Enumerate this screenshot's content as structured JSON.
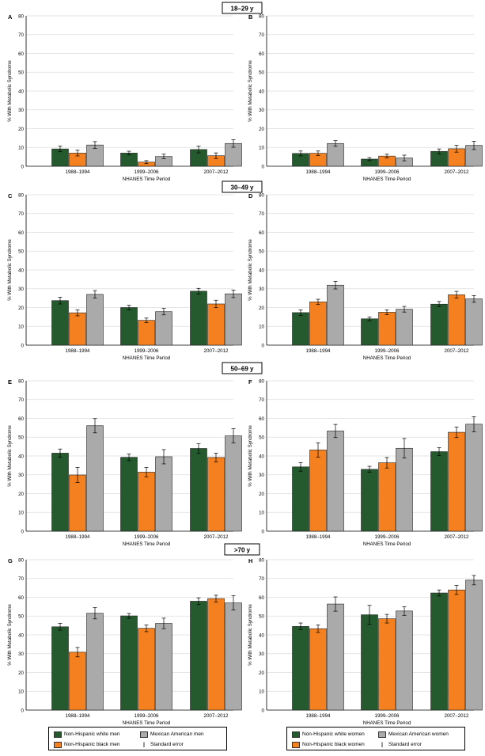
{
  "colors": {
    "white": "#245a2d",
    "black": "#f4801f",
    "mexican": "#aaaaaa"
  },
  "common": {
    "ylabel": "% With Metabolic Syndrome",
    "xlabel": "NHANES Time Period",
    "categories": [
      "1988–1994",
      "1999–2006",
      "2007–2012"
    ],
    "yticks": [
      "0",
      "10",
      "20",
      "30",
      "40",
      "50",
      "60",
      "70",
      "80"
    ],
    "ylim": [
      0,
      80
    ]
  },
  "age_headers": [
    "18–29 y",
    "30–49 y",
    "50–69 y",
    ">70 y"
  ],
  "chart_data": [
    {
      "type": "bar",
      "panel": "A",
      "sex": "men",
      "age_group": "18–29 y",
      "series": [
        {
          "name": "Non-Hispanic white men",
          "values": [
            9.2,
            7.0,
            8.9
          ],
          "errors": [
            1.5,
            1.0,
            1.8
          ]
        },
        {
          "name": "Non-Hispanic black men",
          "values": [
            7.0,
            2.2,
            5.6
          ],
          "errors": [
            1.5,
            0.8,
            1.5
          ]
        },
        {
          "name": "Mexican American men",
          "values": [
            11.3,
            5.2,
            12.1
          ],
          "errors": [
            1.8,
            1.2,
            2.0
          ]
        }
      ]
    },
    {
      "type": "bar",
      "panel": "B",
      "sex": "women",
      "age_group": "18–29 y",
      "series": [
        {
          "name": "Non-Hispanic white women",
          "values": [
            6.8,
            3.8,
            7.9
          ],
          "errors": [
            1.3,
            0.8,
            1.3
          ]
        },
        {
          "name": "Non-Hispanic black women",
          "values": [
            6.9,
            5.4,
            9.3
          ],
          "errors": [
            1.2,
            1.0,
            1.8
          ]
        },
        {
          "name": "Mexican American women",
          "values": [
            12.1,
            4.4,
            11.1
          ],
          "errors": [
            1.5,
            1.5,
            2.2
          ]
        }
      ]
    },
    {
      "type": "bar",
      "panel": "C",
      "sex": "men",
      "age_group": "30–49 y",
      "series": [
        {
          "name": "Non-Hispanic white men",
          "values": [
            23.7,
            20.0,
            28.7
          ],
          "errors": [
            1.8,
            1.2,
            1.5
          ]
        },
        {
          "name": "Non-Hispanic black men",
          "values": [
            17.2,
            13.2,
            21.9
          ],
          "errors": [
            1.6,
            1.2,
            2.0
          ]
        },
        {
          "name": "Mexican American men",
          "values": [
            27.0,
            17.8,
            27.3
          ],
          "errors": [
            2.0,
            1.7,
            2.0
          ]
        }
      ]
    },
    {
      "type": "bar",
      "panel": "D",
      "sex": "women",
      "age_group": "30–49 y",
      "series": [
        {
          "name": "Non-Hispanic white women",
          "values": [
            17.3,
            14.0,
            21.8
          ],
          "errors": [
            1.5,
            1.0,
            1.4
          ]
        },
        {
          "name": "Non-Hispanic black women",
          "values": [
            23.0,
            17.5,
            26.8
          ],
          "errors": [
            1.4,
            1.3,
            1.8
          ]
        },
        {
          "name": "Mexican American women",
          "values": [
            31.9,
            19.1,
            24.6
          ],
          "errors": [
            2.0,
            1.5,
            1.8
          ]
        }
      ]
    },
    {
      "type": "bar",
      "panel": "E",
      "sex": "men",
      "age_group": "50–69 y",
      "series": [
        {
          "name": "Non-Hispanic white men",
          "values": [
            41.5,
            39.3,
            44.0
          ],
          "errors": [
            2.2,
            1.8,
            2.5
          ]
        },
        {
          "name": "Non-Hispanic black men",
          "values": [
            29.9,
            31.4,
            39.2
          ],
          "errors": [
            4.0,
            2.5,
            2.3
          ]
        },
        {
          "name": "Mexican American men",
          "values": [
            56.1,
            39.6,
            50.7
          ],
          "errors": [
            3.8,
            3.8,
            3.8
          ]
        }
      ]
    },
    {
      "type": "bar",
      "panel": "F",
      "sex": "women",
      "age_group": "50–69 y",
      "series": [
        {
          "name": "Non-Hispanic white women",
          "values": [
            34.2,
            32.9,
            42.3
          ],
          "errors": [
            2.3,
            1.6,
            2.1
          ]
        },
        {
          "name": "Non-Hispanic black women",
          "values": [
            43.2,
            36.4,
            52.6
          ],
          "errors": [
            3.8,
            2.8,
            2.8
          ]
        },
        {
          "name": "Mexican American women",
          "values": [
            53.3,
            44.1,
            56.9
          ],
          "errors": [
            3.5,
            5.2,
            4.0
          ]
        }
      ]
    },
    {
      "type": "bar",
      "panel": "G",
      "sex": "men",
      "age_group": ">70 y",
      "series": [
        {
          "name": "Non-Hispanic white men",
          "values": [
            44.3,
            50.1,
            57.9
          ],
          "errors": [
            1.8,
            1.3,
            1.8
          ]
        },
        {
          "name": "Non-Hispanic black men",
          "values": [
            30.8,
            43.5,
            59.3
          ],
          "errors": [
            2.5,
            1.8,
            1.8
          ]
        },
        {
          "name": "Mexican American men",
          "values": [
            51.5,
            46.1,
            57.0
          ],
          "errors": [
            3.0,
            2.8,
            3.8
          ]
        }
      ]
    },
    {
      "type": "bar",
      "panel": "H",
      "sex": "women",
      "age_group": ">70 y",
      "series": [
        {
          "name": "Non-Hispanic white women",
          "values": [
            44.5,
            50.7,
            62.3
          ],
          "errors": [
            1.8,
            5.0,
            1.6
          ]
        },
        {
          "name": "Non-Hispanic black women",
          "values": [
            43.3,
            48.6,
            63.9
          ],
          "errors": [
            2.0,
            2.3,
            2.4
          ]
        },
        {
          "name": "Mexican American women",
          "values": [
            56.4,
            52.7,
            69.1
          ],
          "errors": [
            3.8,
            2.3,
            2.5
          ]
        }
      ]
    }
  ],
  "legend_men": {
    "white": "Non-Hispanic white men",
    "black": "Non-Hispanic black men",
    "mexican": "Mexican American men",
    "se": "Standard error"
  },
  "legend_women": {
    "white": "Non-Hispanic white women",
    "black": "Non-Hispanic black women",
    "mexican": "Mexican American women",
    "se": "Standard error"
  }
}
